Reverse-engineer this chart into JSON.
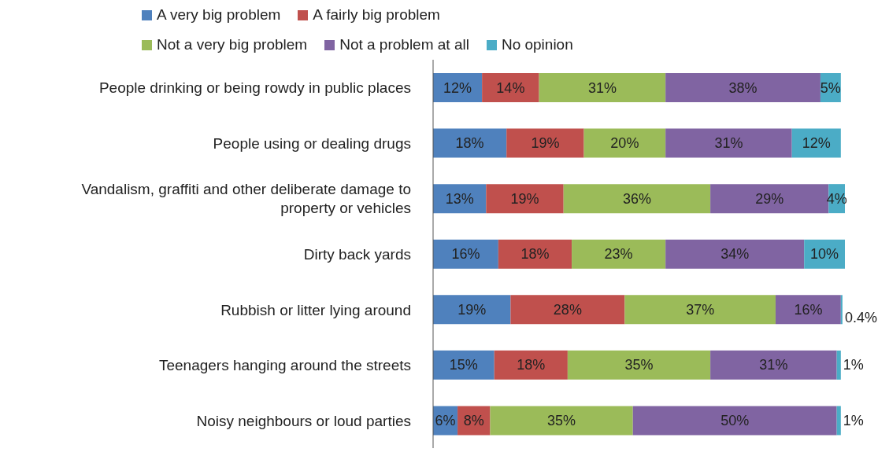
{
  "chart_data": {
    "type": "bar",
    "orientation": "horizontal",
    "stacked": true,
    "xlim": [
      0,
      101
    ],
    "legend": "top",
    "tick_labels": "y",
    "categories": [
      "People drinking or being rowdy in public places",
      "People using or dealing drugs",
      "Vandalism, graffiti and other deliberate damage to property or vehicles",
      "Dirty back yards",
      "Rubbish or litter lying around",
      "Teenagers hanging around the streets",
      "Noisy neighbours or loud parties"
    ],
    "series": [
      {
        "name": "A very big problem",
        "color": "#4f81bd",
        "values": [
          12,
          18,
          13,
          16,
          19,
          15,
          6
        ],
        "value_labels": [
          "12%",
          "18%",
          "13%",
          "16%",
          "19%",
          "15%",
          "6%"
        ]
      },
      {
        "name": "A fairly big problem",
        "color": "#c0504d",
        "values": [
          14,
          19,
          19,
          18,
          28,
          18,
          8
        ],
        "value_labels": [
          "14%",
          "19%",
          "19%",
          "18%",
          "28%",
          "18%",
          "8%"
        ]
      },
      {
        "name": "Not a very big problem",
        "color": "#9bbb59",
        "values": [
          31,
          20,
          36,
          23,
          37,
          35,
          35
        ],
        "value_labels": [
          "31%",
          "20%",
          "36%",
          "23%",
          "37%",
          "35%",
          "35%"
        ]
      },
      {
        "name": "Not a problem at all",
        "color": "#8064a2",
        "values": [
          38,
          31,
          29,
          34,
          16,
          31,
          50
        ],
        "value_labels": [
          "38%",
          "31%",
          "29%",
          "34%",
          "16%",
          "31%",
          "50%"
        ]
      },
      {
        "name": "No opinion",
        "color": "#4bacc6",
        "values": [
          5,
          12,
          4,
          10,
          0.4,
          1,
          1
        ],
        "value_labels": [
          "5%",
          "12%",
          "4%",
          "10%",
          "0.4%",
          "1%",
          "1%"
        ]
      }
    ]
  }
}
